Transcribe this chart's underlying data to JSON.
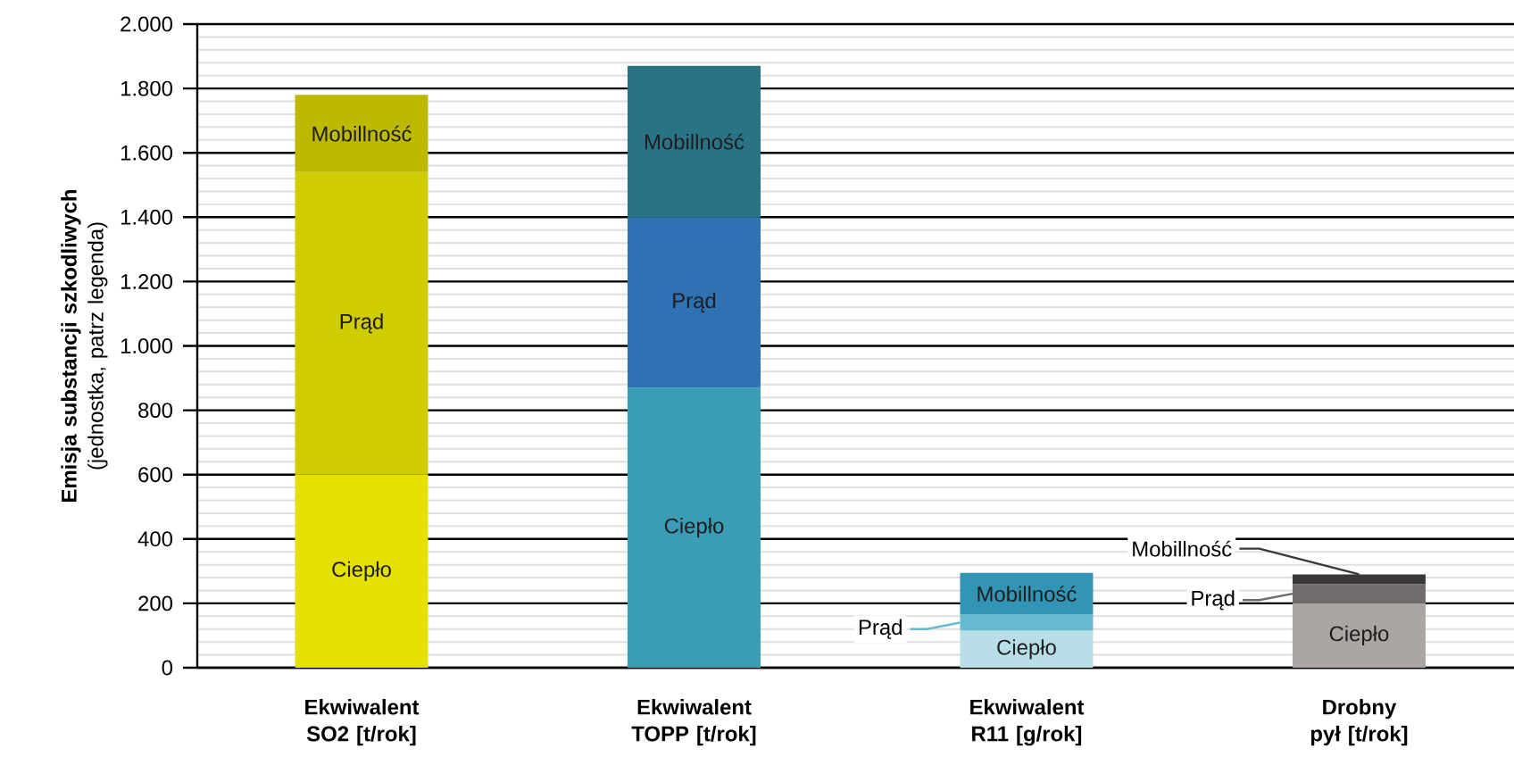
{
  "chart_data": {
    "type": "bar",
    "stacked": true,
    "ylabel": "**Emisja substancji szkodliwych** (jednostka, patrz legenda)",
    "categories": [
      "Ekwiwalent SO2 [t/rok]",
      "Ekwiwalent TOPP [t/rok]",
      "Ekwiwalent R11 [g/rok]",
      "Drobny pył [t/rok]"
    ],
    "series": [
      {
        "name": "Ciepło",
        "colors": [
          "#e5e000",
          "#3a9db5",
          "#b8dfe8",
          "#aba6a4"
        ],
        "values": [
          600,
          870,
          115,
          200
        ]
      },
      {
        "name": "Prąd",
        "colors": [
          "#cfcc00",
          "#2f72b3",
          "#67b9d1",
          "#716c6b"
        ],
        "values": [
          940,
          530,
          50,
          60
        ]
      },
      {
        "name": "Mobillność",
        "colors": [
          "#bdb800",
          "#2a7385",
          "#3395b5",
          "#3a3837"
        ],
        "values": [
          240,
          470,
          130,
          30
        ]
      }
    ],
    "ylim": [
      0,
      2000
    ],
    "yticks": [
      0,
      200,
      400,
      600,
      800,
      {
        "value": 1000,
        "label": "1.000"
      },
      {
        "value": 1200,
        "label": "1.200"
      },
      {
        "value": 1400,
        "label": "1.400"
      },
      {
        "value": 1600,
        "label": "1.600"
      },
      {
        "value": 1800,
        "label": "1.800"
      },
      {
        "value": 2000,
        "label": "2.000"
      }
    ],
    "grid": "y"
  }
}
